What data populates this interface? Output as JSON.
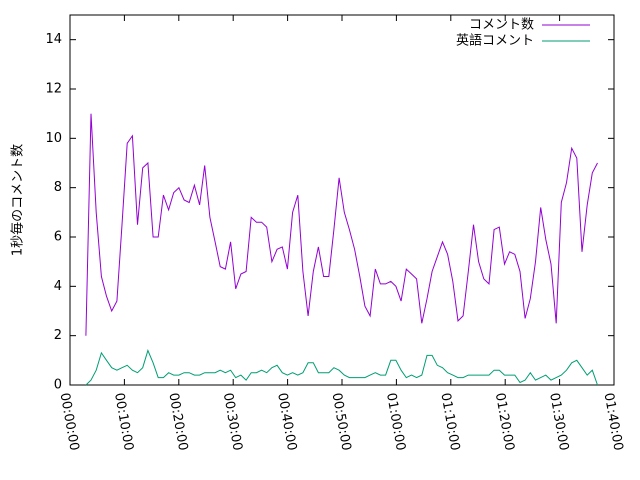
{
  "chart_data": {
    "type": "line",
    "ylabel": "1秒毎のコメント数",
    "x": [
      175,
      232,
      289,
      346,
      403,
      460,
      517,
      574,
      631,
      688,
      745,
      802,
      859,
      916,
      973,
      1030,
      1087,
      1144,
      1201,
      1258,
      1315,
      1372,
      1429,
      1486,
      1543,
      1600,
      1657,
      1714,
      1771,
      1828,
      1885,
      1942,
      1999,
      2056,
      2113,
      2170,
      2227,
      2284,
      2341,
      2398,
      2455,
      2512,
      2569,
      2626,
      2683,
      2740,
      2797,
      2854,
      2911,
      2968,
      3025,
      3082,
      3139,
      3196,
      3253,
      3310,
      3367,
      3424,
      3481,
      3538,
      3595,
      3652,
      3709,
      3766,
      3823,
      3880,
      3937,
      3994,
      4051,
      4108,
      4165,
      4222,
      4279,
      4336,
      4393,
      4450,
      4507,
      4564,
      4621,
      4678,
      4735,
      4792,
      4849,
      4906,
      4963,
      5020,
      5077,
      5134,
      5191,
      5248,
      5305,
      5362,
      5419,
      5476,
      5533,
      5590,
      5647,
      5704,
      5761,
      5818
    ],
    "series": [
      {
        "name": "コメント数",
        "color": "#9400d3",
        "values": [
          2.0,
          11.0,
          7.0,
          4.4,
          3.6,
          3.0,
          3.4,
          6.5,
          9.8,
          10.1,
          6.5,
          8.8,
          9.0,
          6.0,
          6.0,
          7.7,
          7.1,
          7.8,
          8.0,
          7.5,
          7.4,
          8.1,
          7.3,
          8.9,
          6.8,
          5.8,
          4.8,
          4.7,
          5.8,
          3.9,
          4.5,
          4.6,
          6.8,
          6.6,
          6.6,
          6.4,
          5.0,
          5.5,
          5.6,
          4.7,
          7.0,
          7.7,
          4.6,
          2.8,
          4.6,
          5.6,
          4.4,
          4.4,
          6.3,
          8.4,
          7.0,
          6.3,
          5.5,
          4.4,
          3.2,
          2.8,
          4.7,
          4.1,
          4.1,
          4.2,
          4.0,
          3.4,
          4.7,
          4.5,
          4.3,
          2.5,
          3.5,
          4.6,
          5.2,
          5.8,
          5.3,
          4.2,
          2.6,
          2.8,
          4.6,
          6.5,
          5.0,
          4.3,
          4.1,
          6.3,
          6.4,
          4.9,
          5.4,
          5.3,
          4.6,
          2.7,
          3.5,
          5.0,
          7.2,
          5.9,
          4.9,
          2.5,
          7.4,
          8.2,
          9.6,
          9.2,
          5.4,
          7.3,
          8.6,
          9.0
        ]
      },
      {
        "name": "英語コメント",
        "color": "#009e73",
        "values": [
          0,
          0.2,
          0.6,
          1.3,
          1.0,
          0.7,
          0.6,
          0.7,
          0.8,
          0.6,
          0.5,
          0.7,
          1.4,
          0.9,
          0.3,
          0.3,
          0.5,
          0.4,
          0.4,
          0.5,
          0.5,
          0.4,
          0.4,
          0.5,
          0.5,
          0.5,
          0.6,
          0.5,
          0.6,
          0.3,
          0.4,
          0.2,
          0.5,
          0.5,
          0.6,
          0.5,
          0.7,
          0.8,
          0.5,
          0.4,
          0.5,
          0.4,
          0.5,
          0.9,
          0.9,
          0.5,
          0.5,
          0.5,
          0.7,
          0.6,
          0.4,
          0.3,
          0.3,
          0.3,
          0.3,
          0.4,
          0.5,
          0.4,
          0.4,
          1.0,
          1.0,
          0.6,
          0.3,
          0.4,
          0.3,
          0.4,
          1.2,
          1.2,
          0.8,
          0.7,
          0.5,
          0.4,
          0.3,
          0.3,
          0.4,
          0.4,
          0.4,
          0.4,
          0.4,
          0.6,
          0.6,
          0.4,
          0.4,
          0.4,
          0.1,
          0.2,
          0.5,
          0.2,
          0.3,
          0.4,
          0.2,
          0.3,
          0.4,
          0.6,
          0.9,
          1.0,
          0.7,
          0.4,
          0.6,
          0.0
        ]
      }
    ],
    "xlim": [
      0,
      6000
    ],
    "xticks": [
      {
        "value": 0,
        "label": "00:00:00"
      },
      {
        "value": 600,
        "label": "00:10:00"
      },
      {
        "value": 1200,
        "label": "00:20:00"
      },
      {
        "value": 1800,
        "label": "00:30:00"
      },
      {
        "value": 2400,
        "label": "00:40:00"
      },
      {
        "value": 3000,
        "label": "00:50:00"
      },
      {
        "value": 3600,
        "label": "01:00:00"
      },
      {
        "value": 4200,
        "label": "01:10:00"
      },
      {
        "value": 4800,
        "label": "01:20:00"
      },
      {
        "value": 5400,
        "label": "01:30:00"
      },
      {
        "value": 6000,
        "label": "01:40:00"
      }
    ],
    "ylim": [
      0,
      15
    ],
    "yticks": [
      0,
      2,
      4,
      6,
      8,
      10,
      12,
      14
    ],
    "legend": "top-right"
  }
}
